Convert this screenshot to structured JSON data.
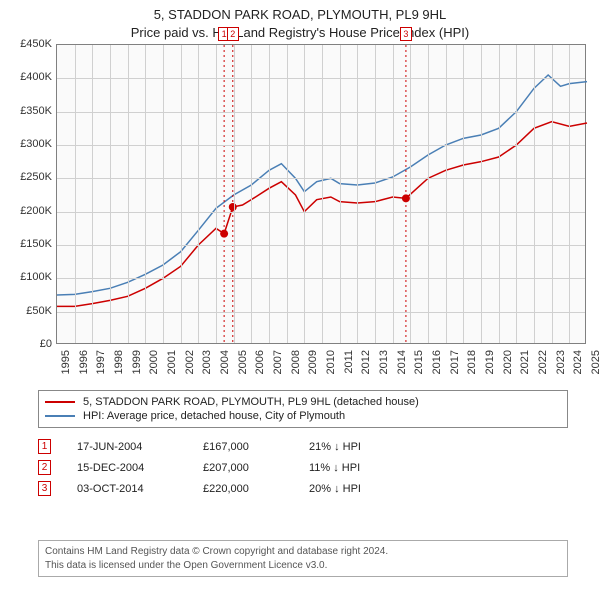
{
  "title": {
    "line1": "5, STADDON PARK ROAD, PLYMOUTH, PL9 9HL",
    "line2": "Price paid vs. HM Land Registry's House Price Index (HPI)",
    "fontsize": 13,
    "color": "#222222"
  },
  "chart": {
    "type": "line",
    "background_color": "#fafafa",
    "border_color": "#808080",
    "grid_color": "#d0d0d0",
    "x": {
      "min": 1995,
      "max": 2025,
      "tick_step": 1,
      "label_rotation_deg": -90,
      "fontsize": 11
    },
    "y": {
      "min": 0,
      "max": 450000,
      "tick_step": 50000,
      "tick_format_prefix": "£",
      "tick_format_suffix": "K",
      "fontsize": 11
    },
    "series": [
      {
        "id": "price_paid",
        "label": "5, STADDON PARK ROAD, PLYMOUTH, PL9 9HL (detached house)",
        "color": "#cc0000",
        "line_width": 1.5,
        "data": [
          [
            1995.0,
            58000
          ],
          [
            1996.0,
            58000
          ],
          [
            1997.0,
            62000
          ],
          [
            1998.0,
            67000
          ],
          [
            1999.0,
            73000
          ],
          [
            2000.0,
            85000
          ],
          [
            2001.0,
            100000
          ],
          [
            2002.0,
            118000
          ],
          [
            2003.0,
            150000
          ],
          [
            2004.0,
            175000
          ],
          [
            2004.46,
            167000
          ],
          [
            2004.95,
            207000
          ],
          [
            2005.5,
            210000
          ],
          [
            2006.0,
            218000
          ],
          [
            2007.0,
            235000
          ],
          [
            2007.7,
            245000
          ],
          [
            2008.5,
            225000
          ],
          [
            2009.0,
            200000
          ],
          [
            2009.7,
            218000
          ],
          [
            2010.5,
            222000
          ],
          [
            2011.0,
            215000
          ],
          [
            2012.0,
            213000
          ],
          [
            2013.0,
            215000
          ],
          [
            2014.0,
            222000
          ],
          [
            2014.75,
            220000
          ],
          [
            2015.5,
            238000
          ],
          [
            2016.0,
            250000
          ],
          [
            2017.0,
            262000
          ],
          [
            2018.0,
            270000
          ],
          [
            2019.0,
            275000
          ],
          [
            2020.0,
            282000
          ],
          [
            2021.0,
            300000
          ],
          [
            2022.0,
            325000
          ],
          [
            2023.0,
            335000
          ],
          [
            2024.0,
            328000
          ],
          [
            2025.0,
            333000
          ]
        ]
      },
      {
        "id": "hpi",
        "label": "HPI: Average price, detached house, City of Plymouth",
        "color": "#4a7fb5",
        "line_width": 1.5,
        "data": [
          [
            1995.0,
            75000
          ],
          [
            1996.0,
            76000
          ],
          [
            1997.0,
            80000
          ],
          [
            1998.0,
            85000
          ],
          [
            1999.0,
            94000
          ],
          [
            2000.0,
            106000
          ],
          [
            2001.0,
            120000
          ],
          [
            2002.0,
            140000
          ],
          [
            2003.0,
            172000
          ],
          [
            2004.0,
            205000
          ],
          [
            2005.0,
            225000
          ],
          [
            2006.0,
            240000
          ],
          [
            2007.0,
            262000
          ],
          [
            2007.7,
            272000
          ],
          [
            2008.5,
            250000
          ],
          [
            2009.0,
            230000
          ],
          [
            2009.7,
            245000
          ],
          [
            2010.5,
            250000
          ],
          [
            2011.0,
            242000
          ],
          [
            2012.0,
            240000
          ],
          [
            2013.0,
            243000
          ],
          [
            2014.0,
            252000
          ],
          [
            2015.0,
            267000
          ],
          [
            2016.0,
            285000
          ],
          [
            2017.0,
            300000
          ],
          [
            2018.0,
            310000
          ],
          [
            2019.0,
            315000
          ],
          [
            2020.0,
            325000
          ],
          [
            2021.0,
            350000
          ],
          [
            2022.0,
            385000
          ],
          [
            2022.8,
            405000
          ],
          [
            2023.5,
            388000
          ],
          [
            2024.0,
            392000
          ],
          [
            2025.0,
            395000
          ]
        ]
      }
    ],
    "sale_markers": [
      {
        "num": "1",
        "x": 2004.46,
        "y": 167000
      },
      {
        "num": "2",
        "x": 2004.95,
        "y": 207000
      },
      {
        "num": "3",
        "x": 2014.75,
        "y": 220000
      }
    ]
  },
  "legend": {
    "border_color": "#888888",
    "fontsize": 11
  },
  "sale_points": [
    {
      "num": "1",
      "date": "17-JUN-2004",
      "price": "£167,000",
      "diff": "21% ↓ HPI"
    },
    {
      "num": "2",
      "date": "15-DEC-2004",
      "price": "£207,000",
      "diff": "11% ↓ HPI"
    },
    {
      "num": "3",
      "date": "03-OCT-2014",
      "price": "£220,000",
      "diff": "20% ↓ HPI"
    }
  ],
  "footer": {
    "line1": "Contains HM Land Registry data © Crown copyright and database right 2024.",
    "line2": "This data is licensed under the Open Government Licence v3.0.",
    "fontsize": 10,
    "color": "#555555",
    "border_color": "#aaaaaa"
  }
}
